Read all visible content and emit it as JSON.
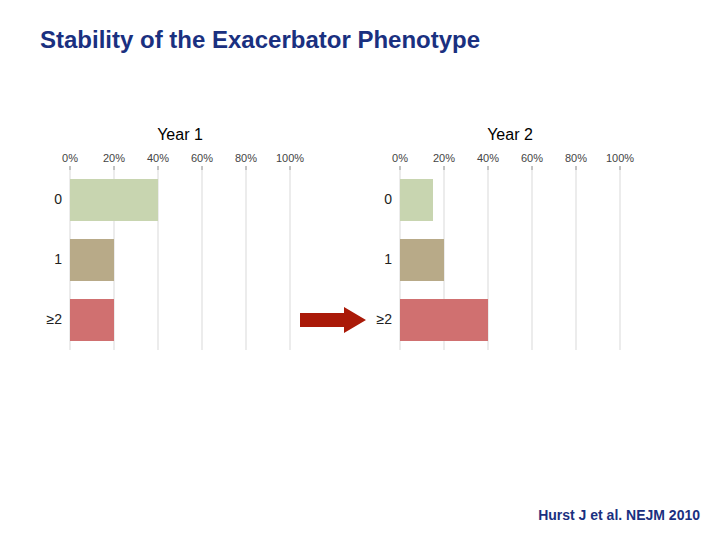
{
  "title": "Stability of the Exacerbator Phenotype",
  "annotations": [
    "Hurst J et al. NEJM 2010"
  ],
  "chart_data": [
    {
      "type": "bar",
      "orientation": "horizontal",
      "title": "Year 1",
      "categories": [
        "0",
        "1",
        "≥2"
      ],
      "values": [
        40,
        20,
        20
      ],
      "colors": [
        "#c8d5b0",
        "#b8aa88",
        "#d07070"
      ],
      "xlim": [
        0,
        100
      ],
      "xticks": [
        {
          "value": 0,
          "label": "0%"
        },
        {
          "value": 20,
          "label": "20%"
        },
        {
          "value": 40,
          "label": "40%"
        },
        {
          "value": 60,
          "label": "60%"
        },
        {
          "value": 80,
          "label": "80%"
        },
        {
          "value": 100,
          "label": "100%"
        }
      ],
      "grid": true
    },
    {
      "type": "bar",
      "orientation": "horizontal",
      "title": "Year 2",
      "categories": [
        "0",
        "1",
        "≥2"
      ],
      "values": [
        15,
        20,
        40
      ],
      "colors": [
        "#c8d5b0",
        "#b8aa88",
        "#d07070"
      ],
      "xlim": [
        0,
        100
      ],
      "xticks": [
        {
          "value": 0,
          "label": "0%"
        },
        {
          "value": 20,
          "label": "20%"
        },
        {
          "value": 40,
          "label": "40%"
        },
        {
          "value": 60,
          "label": "60%"
        },
        {
          "value": 80,
          "label": "80%"
        },
        {
          "value": 100,
          "label": "100%"
        }
      ],
      "grid": true
    }
  ]
}
